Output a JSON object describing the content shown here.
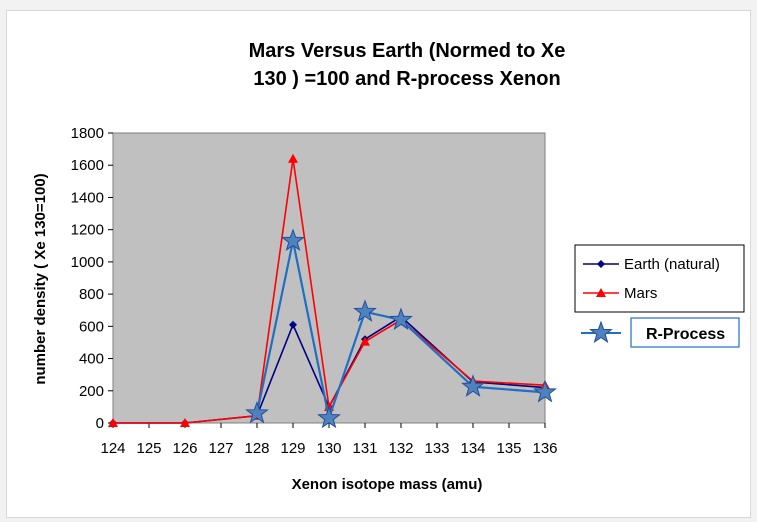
{
  "chart_data": {
    "type": "line",
    "title_lines": [
      "Mars Versus Earth (Normed to Xe",
      "130 ) =100 and R-process Xenon"
    ],
    "xlabel": "Xenon isotope mass (amu)",
    "ylabel": "number density ( Xe 130=100)",
    "xlim": [
      124,
      136
    ],
    "ylim": [
      0,
      1800
    ],
    "x_ticks": [
      "124",
      "125",
      "126",
      "127",
      "128",
      "129",
      "130",
      "131",
      "132",
      "133",
      "134",
      "135",
      "136"
    ],
    "y_ticks": [
      "0",
      "200",
      "400",
      "600",
      "800",
      "1000",
      "1200",
      "1400",
      "1600",
      "1800"
    ],
    "grid": false,
    "plot_background": "#c0c0c0",
    "legend_position": "right",
    "series": [
      {
        "name": "Earth (natural)",
        "color": "#000080",
        "marker": "diamond",
        "x": [
          124,
          126,
          128,
          129,
          130,
          131,
          132,
          134,
          136
        ],
        "y": [
          0,
          0,
          45,
          610,
          100,
          520,
          660,
          255,
          220
        ]
      },
      {
        "name": "Mars",
        "color": "#ff0000",
        "marker": "triangle",
        "x": [
          124,
          126,
          128,
          129,
          130,
          131,
          132,
          134,
          136
        ],
        "y": [
          0,
          0,
          45,
          1640,
          100,
          505,
          640,
          260,
          235
        ]
      },
      {
        "name": "R-Process",
        "color": "#1f6fc5",
        "marker": "star",
        "x": [
          128,
          129,
          130,
          131,
          132,
          134,
          136
        ],
        "y": [
          60,
          1130,
          30,
          690,
          640,
          225,
          190
        ]
      }
    ]
  }
}
